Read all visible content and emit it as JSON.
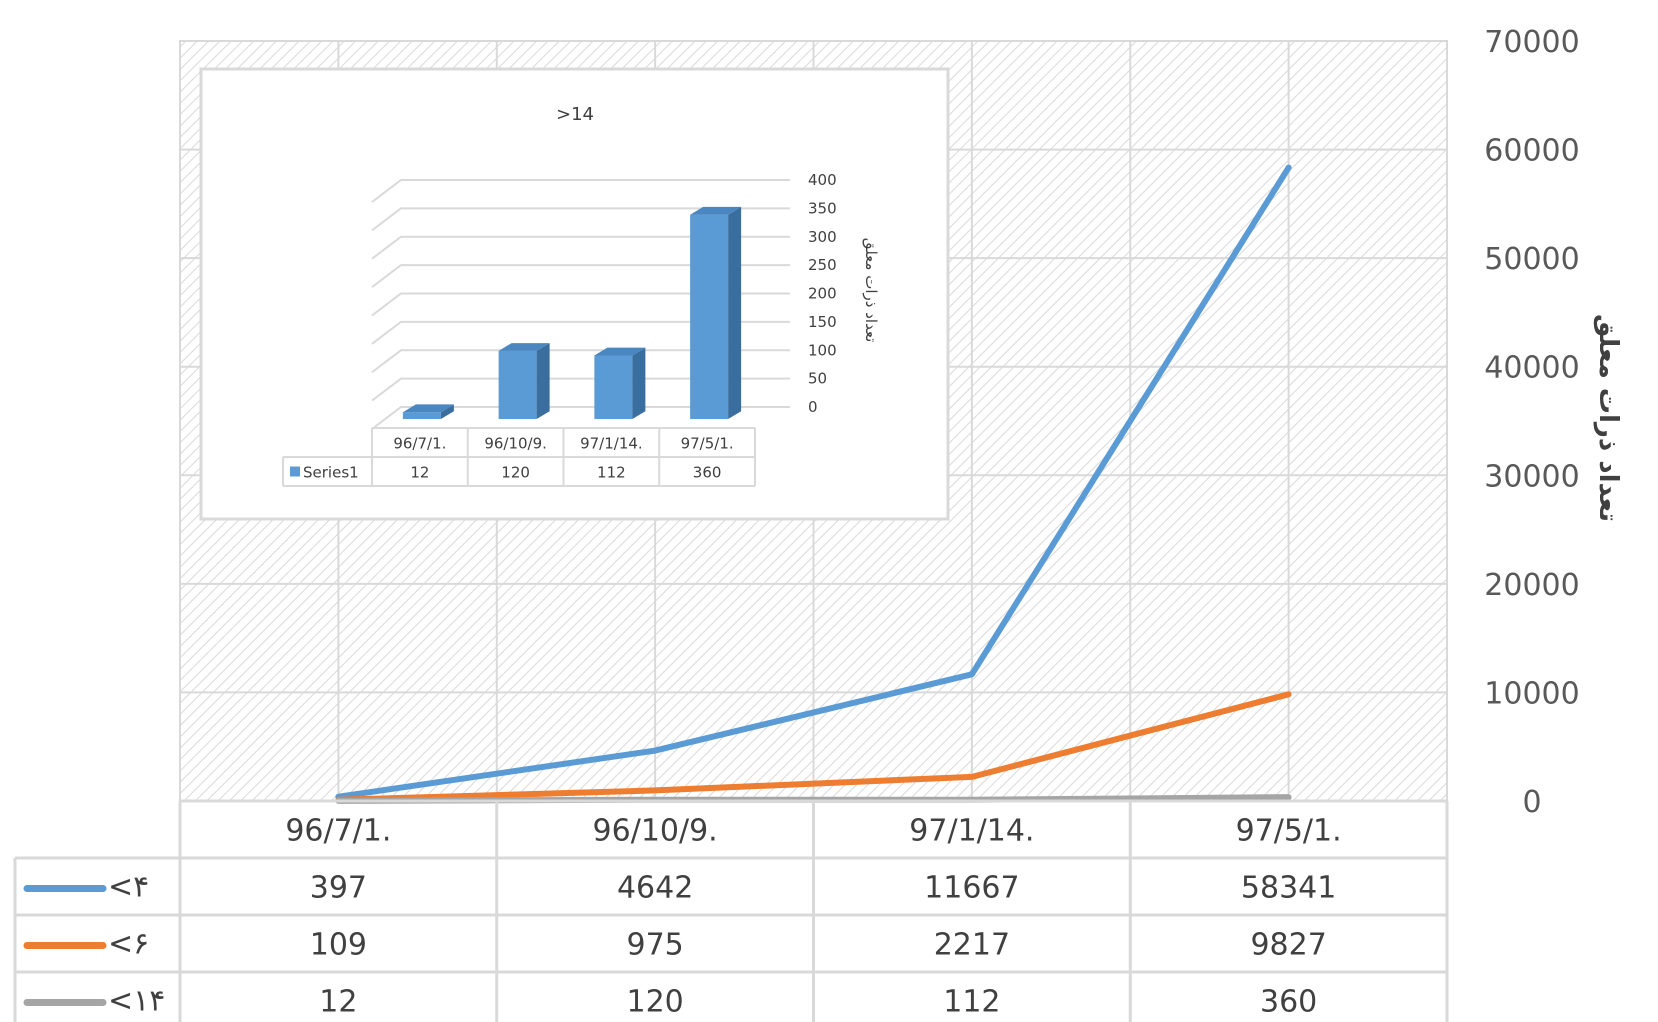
{
  "chart_data": [
    {
      "type": "line",
      "title": "",
      "ylabel": "تعداد ذرات معلق",
      "ylim": [
        0,
        70000
      ],
      "yticks": [
        0,
        10000,
        20000,
        30000,
        40000,
        50000,
        60000,
        70000
      ],
      "categories": [
        "96/7/1.",
        "96/10/9.",
        "97/1/14.",
        "97/5/1."
      ],
      "series": [
        {
          "name": "<۴",
          "color": "#5B9BD5",
          "values": [
            397,
            4642,
            11667,
            58341
          ]
        },
        {
          "name": "<۶",
          "color": "#ED7D31",
          "values": [
            109,
            975,
            2217,
            9827
          ]
        },
        {
          "name": "<۱۴",
          "color": "#A5A5A5",
          "values": [
            12,
            120,
            112,
            360
          ]
        }
      ],
      "grid": true,
      "legend": "data-table"
    },
    {
      "type": "bar",
      "title": ">14",
      "ylabel": "تعداد ذرات معلق",
      "ylim": [
        0,
        400
      ],
      "yticks": [
        0,
        50,
        100,
        150,
        200,
        250,
        300,
        350,
        400
      ],
      "categories": [
        "96/7/1.",
        "96/10/9.",
        "97/1/14.",
        "97/5/1."
      ],
      "series": [
        {
          "name": "Series1",
          "color": "#5B9BD5",
          "values": [
            12,
            120,
            112,
            360
          ]
        }
      ],
      "grid": true,
      "legend": "data-table"
    }
  ]
}
